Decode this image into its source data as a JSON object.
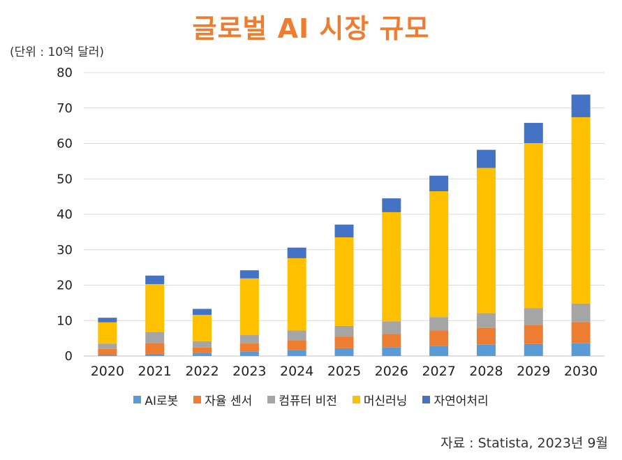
{
  "header": {
    "title": "글로벌 AI 시장 규모",
    "unit": "(단위 : 10억 달러)"
  },
  "footer": {
    "source": "자료 : Statista, 2023년 9월"
  },
  "colors": {
    "AI로봇": "#5B9BD5",
    "자율 센서": "#ED7D31",
    "컴퓨터 비전": "#A5A5A5",
    "머신러닝": "#FFC000",
    "자연어처리": "#4472C4",
    "title": "#ED7D31"
  },
  "chart_data": {
    "type": "bar",
    "stacked": true,
    "title": "글로벌 AI 시장 규모",
    "ylabel": "(단위 : 10억 달러)",
    "categories": [
      "2020",
      "2021",
      "2022",
      "2023",
      "2024",
      "2025",
      "2026",
      "2027",
      "2028",
      "2029",
      "2030"
    ],
    "ylim": [
      0,
      80
    ],
    "yticks": [
      0,
      10,
      20,
      30,
      40,
      50,
      60,
      70,
      80
    ],
    "grid": true,
    "legend_position": "bottom",
    "series": [
      {
        "name": "AI로봇",
        "values": [
          0.3,
          0.6,
          0.8,
          1.2,
          1.7,
          2.2,
          2.5,
          2.9,
          3.2,
          3.4,
          3.6
        ]
      },
      {
        "name": "자율 센서",
        "values": [
          1.7,
          3.1,
          1.6,
          2.4,
          2.8,
          3.3,
          3.7,
          4.3,
          4.7,
          5.4,
          6.0
        ]
      },
      {
        "name": "컴퓨터 비전",
        "values": [
          1.5,
          3.0,
          1.8,
          2.3,
          2.7,
          3.0,
          3.6,
          3.8,
          4.2,
          4.7,
          5.2
        ]
      },
      {
        "name": "머신러닝",
        "values": [
          6.0,
          13.6,
          7.4,
          16.0,
          20.4,
          25.0,
          30.8,
          35.5,
          41.0,
          46.6,
          52.6
        ]
      },
      {
        "name": "자연어처리",
        "values": [
          1.3,
          2.4,
          1.7,
          2.3,
          3.0,
          3.6,
          3.9,
          4.4,
          5.1,
          5.7,
          6.4
        ]
      }
    ]
  }
}
